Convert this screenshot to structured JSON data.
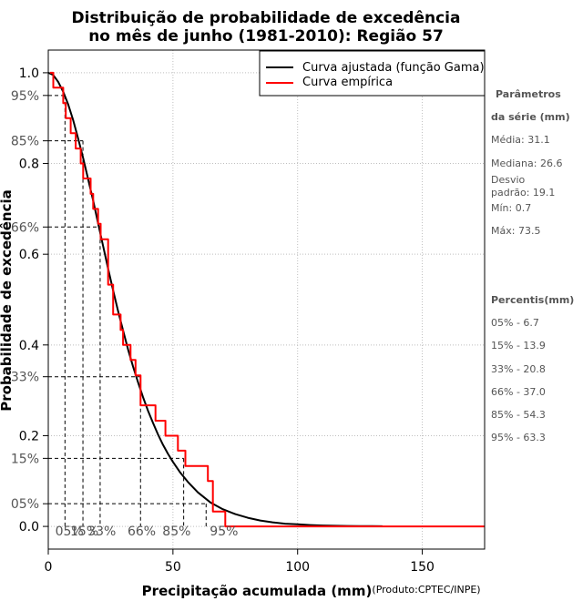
{
  "chart_data": {
    "type": "line",
    "title_lines": [
      "Distribuição de probabilidade de excedência",
      "no mês de junho (1981-2010): Região 57"
    ],
    "xlabel": "Precipitação acumulada (mm)",
    "ylabel": "Probabilidade de excedência",
    "credit": "(Produto:CPTEC/INPE)",
    "xlim": [
      0,
      175
    ],
    "ylim": [
      -0.05,
      1.05
    ],
    "x_ticks": [
      0,
      50,
      100,
      150
    ],
    "y_ticks": [
      {
        "value": 0.0,
        "label": "0.0"
      },
      {
        "value": 0.2,
        "label": "0.2"
      },
      {
        "value": 0.4,
        "label": "0.4"
      },
      {
        "value": 0.6,
        "label": "0.6"
      },
      {
        "value": 0.8,
        "label": "0.8"
      },
      {
        "value": 1.0,
        "label": "1.0"
      }
    ],
    "y_pct_ticks": [
      {
        "value": 0.05,
        "label": "05%"
      },
      {
        "value": 0.15,
        "label": "15%"
      },
      {
        "value": 0.33,
        "label": "33%"
      },
      {
        "value": 0.66,
        "label": "66%"
      },
      {
        "value": 0.85,
        "label": "85%"
      },
      {
        "value": 0.95,
        "label": "95%"
      }
    ],
    "grid": true,
    "legend": {
      "position": "top-right",
      "entries": [
        {
          "label": "Curva ajustada (função Gama)",
          "color": "#000000"
        },
        {
          "label": "Curva empírica",
          "color": "#ff0000"
        }
      ]
    },
    "series": [
      {
        "name": "Curva ajustada (função Gama)",
        "color": "#000000",
        "x": [
          0,
          2,
          4,
          6,
          8,
          10,
          12,
          14,
          16,
          18,
          20,
          22,
          24,
          26,
          28,
          30,
          32,
          34,
          36,
          38,
          40,
          42,
          44,
          46,
          48,
          50,
          53,
          56,
          60,
          65,
          70,
          75,
          80,
          85,
          90,
          95,
          100,
          105,
          110,
          115,
          120,
          125,
          130,
          134
        ],
        "y": [
          1.0,
          0.995,
          0.98,
          0.958,
          0.93,
          0.895,
          0.855,
          0.812,
          0.765,
          0.718,
          0.668,
          0.618,
          0.568,
          0.52,
          0.475,
          0.432,
          0.39,
          0.352,
          0.318,
          0.285,
          0.255,
          0.228,
          0.203,
          0.18,
          0.16,
          0.142,
          0.118,
          0.098,
          0.075,
          0.053,
          0.038,
          0.027,
          0.019,
          0.013,
          0.009,
          0.006,
          0.0045,
          0.003,
          0.002,
          0.0014,
          0.001,
          0.0007,
          0.0005,
          0.0003
        ]
      },
      {
        "name": "Curva empírica",
        "color": "#ff0000",
        "x": [
          0.7,
          2,
          2,
          6,
          6,
          7,
          7,
          9,
          9,
          11,
          11,
          13,
          13,
          14,
          14,
          17,
          17,
          18,
          18,
          20,
          20,
          21,
          21,
          24,
          24,
          26,
          26,
          29,
          29,
          30,
          30,
          33,
          33,
          35,
          35,
          37,
          37,
          43,
          43,
          47,
          47,
          52,
          52,
          55,
          55,
          64,
          64,
          66,
          66,
          71,
          71,
          73.5,
          73.5,
          175
        ],
        "y": [
          1.0,
          1.0,
          0.967,
          0.967,
          0.933,
          0.933,
          0.9,
          0.9,
          0.867,
          0.867,
          0.833,
          0.833,
          0.8,
          0.8,
          0.767,
          0.767,
          0.733,
          0.733,
          0.7,
          0.7,
          0.667,
          0.667,
          0.633,
          0.633,
          0.533,
          0.533,
          0.467,
          0.467,
          0.433,
          0.433,
          0.4,
          0.4,
          0.367,
          0.367,
          0.333,
          0.333,
          0.267,
          0.267,
          0.233,
          0.233,
          0.2,
          0.2,
          0.167,
          0.167,
          0.133,
          0.133,
          0.1,
          0.1,
          0.033,
          0.033,
          0.0,
          0.0,
          0.0,
          0.0
        ]
      }
    ],
    "percentile_markers": [
      {
        "label": "05%",
        "x": 6.7,
        "y": 0.95
      },
      {
        "label": "15%",
        "x": 13.9,
        "y": 0.85
      },
      {
        "label": "33%",
        "x": 20.8,
        "y": 0.66
      },
      {
        "label": "66%",
        "x": 37.0,
        "y": 0.33
      },
      {
        "label": "85%",
        "x": 54.3,
        "y": 0.15
      },
      {
        "label": "95%",
        "x": 63.3,
        "y": 0.05
      }
    ],
    "percentile_label_positions": [
      {
        "label": "05%",
        "x": 7
      },
      {
        "label": "15%",
        "x": 13
      },
      {
        "label": "33%",
        "x": 20
      },
      {
        "label": "66%",
        "x": 36
      },
      {
        "label": "85%",
        "x": 50
      },
      {
        "label": "95%",
        "x": 69
      }
    ]
  },
  "sidebar": {
    "params_heading_1": "Parâmetros",
    "params_heading_2": "da série (mm)",
    "media": "Média: 31.1",
    "mediana": "Mediana: 26.6",
    "desvio_1": "Desvio",
    "desvio_2": "padrão: 19.1",
    "min": "Mín: 0.7",
    "max": "Máx: 73.5",
    "percentis_heading": "Percentis(mm)",
    "percentis": [
      "05% - 6.7",
      "15% - 13.9",
      "33% - 20.8",
      "66% - 37.0",
      "85% - 54.3",
      "95% - 63.3"
    ]
  }
}
